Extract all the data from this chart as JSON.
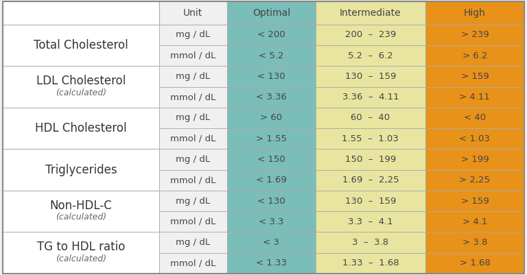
{
  "col_headers": [
    "Unit",
    "Optimal",
    "Intermediate",
    "High"
  ],
  "row_labels": [
    [
      "Total Cholesterol",
      ""
    ],
    [
      "LDL Cholesterol",
      "(calculated)"
    ],
    [
      "HDL Cholesterol",
      ""
    ],
    [
      "Triglycerides",
      ""
    ],
    [
      "Non-HDL-C",
      "(calculated)"
    ],
    [
      "TG to HDL ratio",
      "(calculated)"
    ]
  ],
  "rows": [
    [
      "mg / dL",
      "< 200",
      "200  –  239",
      "> 239"
    ],
    [
      "mmol / dL",
      "< 5.2",
      "5.2  –  6.2",
      "> 6.2"
    ],
    [
      "mg / dL",
      "< 130",
      "130  –  159",
      "> 159"
    ],
    [
      "mmol / dL",
      "< 3.36",
      "3.36  –  4.11",
      "> 4.11"
    ],
    [
      "mg / dL",
      "> 60",
      "60  –  40",
      "< 40"
    ],
    [
      "mmol / dL",
      "> 1.55",
      "1.55  –  1.03",
      "< 1.03"
    ],
    [
      "mg / dL",
      "< 150",
      "150  –  199",
      "> 199"
    ],
    [
      "mmol / dL",
      "< 1.69",
      "1.69  –  2,25",
      "> 2,25"
    ],
    [
      "mg / dL",
      "< 130",
      "130  –  159",
      "> 159"
    ],
    [
      "mmol / dL",
      "< 3.3",
      "3.3  –  4.1",
      "> 4.1"
    ],
    [
      "mg / dL",
      "< 3",
      "3  –  3.8",
      "> 3.8"
    ],
    [
      "mmol / dL",
      "< 1.33",
      "1.33  –  1.68",
      "> 1.68"
    ]
  ],
  "bg_color": "#f0f0f0",
  "label_bg": "#ffffff",
  "unit_bg": "#f0f0f0",
  "optimal_bg": "#7bbdb8",
  "intermediate_bg": "#e8e5a0",
  "high_bg": "#e8921a",
  "border_color": "#aaaaaa",
  "text_dark": "#444444",
  "text_label": "#333333",
  "text_sub": "#666666",
  "header_fontsize": 10,
  "label_fontsize": 12,
  "sub_fontsize": 9,
  "cell_fontsize": 9.5,
  "col_props": [
    0.3,
    0.13,
    0.17,
    0.21,
    0.19
  ]
}
